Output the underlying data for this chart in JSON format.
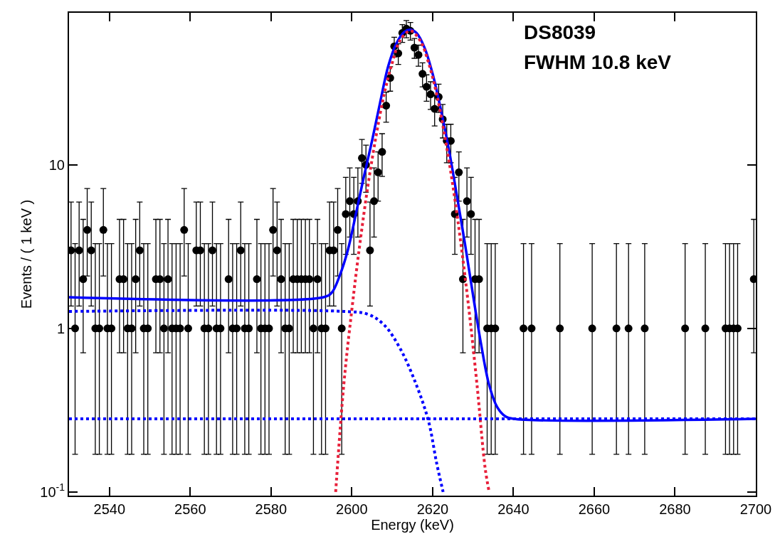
{
  "chart_data": {
    "type": "scatter",
    "xlabel": "Energy (keV)",
    "ylabel": "Events / ( 1 keV )",
    "annotations": [
      "DS8039",
      "FWHM 10.8 keV"
    ],
    "xlim": [
      2530,
      2700
    ],
    "xticks": [
      2540,
      2560,
      2580,
      2600,
      2620,
      2640,
      2660,
      2680,
      2700
    ],
    "ylim": [
      0.095,
      85
    ],
    "yticks": [
      {
        "value": 0.1,
        "label": "10$^{-1}$"
      },
      1,
      10
    ],
    "log": "y",
    "series": [
      {
        "color": "#000000",
        "marker": "circle",
        "x": [
          2530.5,
          2531.5,
          2532.5,
          2533.5,
          2534.5,
          2535.5,
          2536.5,
          2537.5,
          2538.5,
          2539.5,
          2540.5,
          2542.5,
          2543.5,
          2544.5,
          2545.5,
          2546.5,
          2547.5,
          2548.5,
          2549.5,
          2551.5,
          2552.5,
          2553.5,
          2554.5,
          2555.5,
          2556.5,
          2557.5,
          2558.5,
          2559.5,
          2561.5,
          2562.5,
          2563.5,
          2564.5,
          2565.5,
          2566.5,
          2567.5,
          2569.5,
          2570.5,
          2571.5,
          2572.5,
          2573.5,
          2574.5,
          2576.5,
          2577.5,
          2578.5,
          2579.5,
          2580.5,
          2581.5,
          2582.5,
          2583.5,
          2584.5,
          2585.5,
          2586.5,
          2587.5,
          2588.5,
          2589.5,
          2590.5,
          2591.5,
          2592.5,
          2593.5,
          2594.5,
          2595.5,
          2596.5,
          2597.5,
          2598.5,
          2599.5,
          2600.5,
          2601.5,
          2602.5,
          2603.5,
          2604.5,
          2605.5,
          2606.5,
          2607.5,
          2608.5,
          2609.5,
          2610.5,
          2611.5,
          2612.5,
          2613.5,
          2614.5,
          2615.5,
          2616.5,
          2617.5,
          2618.5,
          2619.5,
          2620.5,
          2621.5,
          2622.5,
          2623.5,
          2624.5,
          2625.5,
          2626.5,
          2627.5,
          2628.5,
          2629.5,
          2630.5,
          2631.5,
          2633.5,
          2634.5,
          2635.5,
          2642.5,
          2644.5,
          2651.5,
          2659.5,
          2665.5,
          2668.5,
          2672.5,
          2682.5,
          2687.5,
          2692.5,
          2693.5,
          2694.5,
          2695.5,
          2699.5
        ],
        "values": [
          3,
          1,
          3,
          2,
          4,
          3,
          1,
          1,
          4,
          1,
          1,
          2,
          2,
          1,
          1,
          2,
          3,
          1,
          1,
          2,
          2,
          1,
          2,
          1,
          1,
          1,
          4,
          1,
          3,
          3,
          1,
          1,
          3,
          1,
          1,
          2,
          1,
          1,
          3,
          1,
          1,
          2,
          1,
          1,
          1,
          4,
          3,
          2,
          1,
          1,
          2,
          2,
          2,
          2,
          2,
          1,
          2,
          1,
          1,
          3,
          3,
          4,
          1,
          5,
          6,
          5,
          6,
          11,
          10,
          3,
          6,
          9,
          12,
          23,
          34,
          53,
          48,
          64,
          68,
          66,
          52,
          47,
          36,
          30,
          27,
          22,
          26,
          19,
          14,
          14,
          5,
          9,
          2,
          6,
          5,
          2,
          2,
          1,
          1,
          1,
          1,
          1,
          1,
          1,
          1,
          1,
          1,
          1,
          1,
          1,
          1,
          1,
          1,
          2
        ],
        "errors": [
          [
            1.37,
            5.92
          ],
          [
            0.17,
            3.3
          ],
          [
            1.37,
            5.92
          ],
          [
            0.71,
            4.64
          ],
          [
            2.09,
            7.16
          ],
          [
            1.37,
            5.92
          ],
          [
            0.17,
            3.3
          ],
          [
            0.17,
            3.3
          ],
          [
            2.09,
            7.16
          ],
          [
            0.17,
            3.3
          ],
          [
            0.17,
            3.3
          ],
          [
            0.71,
            4.64
          ],
          [
            0.71,
            4.64
          ],
          [
            0.17,
            3.3
          ],
          [
            0.17,
            3.3
          ],
          [
            0.71,
            4.64
          ],
          [
            1.37,
            5.92
          ],
          [
            0.17,
            3.3
          ],
          [
            0.17,
            3.3
          ],
          [
            0.71,
            4.64
          ],
          [
            0.71,
            4.64
          ],
          [
            0.17,
            3.3
          ],
          [
            0.71,
            4.64
          ],
          [
            0.17,
            3.3
          ],
          [
            0.17,
            3.3
          ],
          [
            0.17,
            3.3
          ],
          [
            2.09,
            7.16
          ],
          [
            0.17,
            3.3
          ],
          [
            1.37,
            5.92
          ],
          [
            1.37,
            5.92
          ],
          [
            0.17,
            3.3
          ],
          [
            0.17,
            3.3
          ],
          [
            1.37,
            5.92
          ],
          [
            0.17,
            3.3
          ],
          [
            0.17,
            3.3
          ],
          [
            0.71,
            4.64
          ],
          [
            0.17,
            3.3
          ],
          [
            0.17,
            3.3
          ],
          [
            1.37,
            5.92
          ],
          [
            0.17,
            3.3
          ],
          [
            0.17,
            3.3
          ],
          [
            0.71,
            4.64
          ],
          [
            0.17,
            3.3
          ],
          [
            0.17,
            3.3
          ],
          [
            0.17,
            3.3
          ],
          [
            2.09,
            7.16
          ],
          [
            1.37,
            5.92
          ],
          [
            0.71,
            4.64
          ],
          [
            0.17,
            3.3
          ],
          [
            0.17,
            3.3
          ],
          [
            0.71,
            4.64
          ],
          [
            0.71,
            4.64
          ],
          [
            0.71,
            4.64
          ],
          [
            0.71,
            4.64
          ],
          [
            0.71,
            4.64
          ],
          [
            0.17,
            3.3
          ],
          [
            0.71,
            4.64
          ],
          [
            0.17,
            3.3
          ],
          [
            0.17,
            3.3
          ],
          [
            1.37,
            5.92
          ],
          [
            1.37,
            5.92
          ],
          [
            2.09,
            7.16
          ],
          [
            0.17,
            3.3
          ],
          [
            2.84,
            8.38
          ],
          [
            3.62,
            9.58
          ],
          [
            2.84,
            8.38
          ],
          [
            3.62,
            9.58
          ],
          3.3,
          3.2,
          [
            1.37,
            5.92
          ],
          [
            3.62,
            9.58
          ],
          3,
          3.5,
          4.8,
          5.8,
          7.3,
          6.9,
          8,
          8.2,
          8.1,
          7.2,
          6.9,
          6,
          5.5,
          5.2,
          4.7,
          5.1,
          4.4,
          3.7,
          3.7,
          [
            2.84,
            8.38
          ],
          3,
          [
            0.71,
            4.64
          ],
          [
            3.62,
            9.58
          ],
          [
            2.84,
            8.38
          ],
          [
            0.71,
            4.64
          ],
          [
            0.71,
            4.64
          ],
          [
            0.17,
            3.3
          ],
          [
            0.17,
            3.3
          ],
          [
            0.17,
            3.3
          ],
          [
            0.17,
            3.3
          ],
          [
            0.17,
            3.3
          ],
          [
            0.17,
            3.3
          ],
          [
            0.17,
            3.3
          ],
          [
            0.17,
            3.3
          ],
          [
            0.17,
            3.3
          ],
          [
            0.17,
            3.3
          ],
          [
            0.17,
            3.3
          ],
          [
            0.17,
            3.3
          ],
          [
            0.17,
            3.3
          ],
          [
            0.17,
            3.3
          ],
          [
            0.17,
            3.3
          ],
          [
            0.17,
            3.3
          ],
          [
            0.71,
            4.64
          ]
        ]
      },
      {
        "type": "line",
        "color": "#0000ff",
        "line_style": "solid",
        "x": [
          2530,
          2593,
          2595,
          2597,
          2599,
          2601,
          2603,
          2605,
          2607,
          2609,
          2611,
          2613,
          2614.5,
          2616,
          2618,
          2620,
          2622,
          2624,
          2626,
          2628,
          2630,
          2632,
          2634,
          2636,
          2638,
          2640,
          2700
        ],
        "values": [
          1.55,
          1.55,
          1.65,
          2.1,
          3.0,
          5,
          8.5,
          14,
          24,
          40,
          55,
          65,
          67,
          64,
          52,
          36,
          22,
          12.5,
          6.5,
          3.3,
          1.6,
          0.8,
          0.45,
          0.33,
          0.29,
          0.28,
          0.28
        ]
      },
      {
        "type": "line",
        "color": "#e8203a",
        "line_style": "dotted",
        "x": [
          2596,
          2598,
          2600,
          2602,
          2604,
          2606,
          2608,
          2610,
          2612,
          2614.5,
          2617,
          2619,
          2621,
          2623,
          2625,
          2627,
          2629,
          2631,
          2633,
          2634
        ],
        "values": [
          0.1,
          0.45,
          1.3,
          3.3,
          7.5,
          15,
          27,
          42,
          58,
          66,
          57,
          42,
          27,
          15,
          7.5,
          3.3,
          1.3,
          0.45,
          0.14,
          0.1
        ]
      },
      {
        "type": "line",
        "color": "#0000ff",
        "line_style": "dotted",
        "x": [
          2530,
          2598,
          2604,
          2608,
          2612,
          2616,
          2619,
          2621,
          2622.6
        ],
        "values": [
          1.27,
          1.27,
          1.22,
          1.05,
          0.75,
          0.45,
          0.27,
          0.15,
          0.1
        ]
      },
      {
        "type": "line",
        "color": "#0000ff",
        "line_style": "dotted",
        "x": [
          2530,
          2700
        ],
        "values": [
          0.28,
          0.28
        ]
      }
    ]
  }
}
